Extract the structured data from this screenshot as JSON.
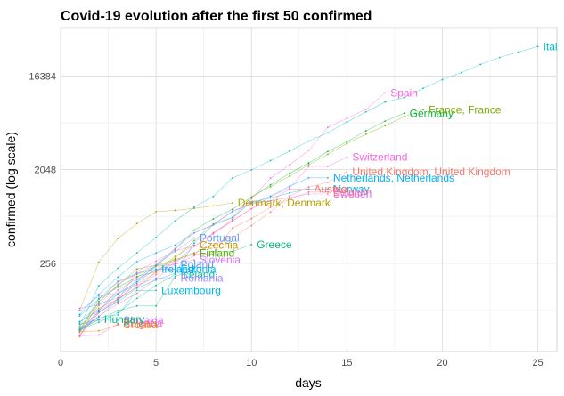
{
  "chart_data": {
    "type": "line",
    "title": "Covid-19 evolution after the first 50 confirmed",
    "xlabel": "days",
    "ylabel": "confirmed  (log scale)",
    "x_scale": "linear",
    "y_scale": "log2",
    "xlim": [
      0,
      26
    ],
    "ylim": [
      36,
      48000
    ],
    "x_ticks": [
      0,
      5,
      10,
      15,
      20,
      25
    ],
    "y_ticks": [
      256,
      2048,
      16384
    ],
    "x_tick_labels": [
      "0",
      "5",
      "10",
      "15",
      "20",
      "25"
    ],
    "y_tick_labels": [
      "256",
      "2048",
      "16384"
    ],
    "grid": true,
    "legend": "none (direct labels at line ends)",
    "series": [
      {
        "name": "Italy",
        "label": "Ital",
        "color": "#00BFC4",
        "values": [
          [
            1,
            62
          ],
          [
            2,
            155
          ],
          [
            3,
            229
          ],
          [
            4,
            322
          ],
          [
            5,
            453
          ],
          [
            6,
            655
          ],
          [
            7,
            888
          ],
          [
            8,
            1128
          ],
          [
            9,
            1694
          ],
          [
            10,
            2036
          ],
          [
            11,
            2502
          ],
          [
            12,
            3089
          ],
          [
            13,
            3858
          ],
          [
            14,
            4636
          ],
          [
            15,
            5883
          ],
          [
            16,
            7375
          ],
          [
            17,
            9172
          ],
          [
            18,
            10149
          ],
          [
            19,
            12462
          ],
          [
            20,
            15113
          ],
          [
            21,
            17660
          ],
          [
            22,
            21157
          ],
          [
            23,
            24747
          ],
          [
            24,
            27980
          ],
          [
            25,
            31506
          ]
        ]
      },
      {
        "name": "Spain",
        "label": "Spain",
        "color": "#F564E3",
        "values": [
          [
            1,
            52
          ],
          [
            2,
            85
          ],
          [
            3,
            114
          ],
          [
            4,
            151
          ],
          [
            5,
            198
          ],
          [
            6,
            257
          ],
          [
            7,
            374
          ],
          [
            8,
            500
          ],
          [
            9,
            673
          ],
          [
            10,
            1073
          ],
          [
            11,
            1695
          ],
          [
            12,
            2277
          ],
          [
            13,
            3146
          ],
          [
            14,
            5232
          ],
          [
            15,
            6391
          ],
          [
            16,
            7798
          ],
          [
            17,
            11277
          ]
        ]
      },
      {
        "name": "Germany",
        "label": "Germany",
        "color": "#00BA38",
        "values": [
          [
            1,
            57
          ],
          [
            2,
            117
          ],
          [
            3,
            150
          ],
          [
            4,
            188
          ],
          [
            5,
            240
          ],
          [
            6,
            349
          ],
          [
            7,
            534
          ],
          [
            8,
            684
          ],
          [
            9,
            847
          ],
          [
            10,
            1112
          ],
          [
            11,
            1460
          ],
          [
            12,
            1884
          ],
          [
            13,
            2369
          ],
          [
            14,
            3062
          ],
          [
            15,
            3795
          ],
          [
            16,
            4838
          ],
          [
            17,
            6012
          ],
          [
            18,
            7156
          ]
        ]
      },
      {
        "name": "France",
        "label": "France, France",
        "color": "#7CAE00",
        "values": [
          [
            1,
            57
          ],
          [
            2,
            100
          ],
          [
            3,
            130
          ],
          [
            4,
            191
          ],
          [
            5,
            212
          ],
          [
            6,
            285
          ],
          [
            7,
            423
          ],
          [
            8,
            613
          ],
          [
            9,
            706
          ],
          [
            10,
            1116
          ],
          [
            11,
            1402
          ],
          [
            12,
            1774
          ],
          [
            13,
            2281
          ],
          [
            14,
            2876
          ],
          [
            15,
            3661
          ],
          [
            16,
            4499
          ],
          [
            17,
            5423
          ],
          [
            18,
            6633
          ],
          [
            19,
            7730
          ]
        ]
      },
      {
        "name": "Switzerland",
        "label": "Switzerland",
        "color": "#F564E3",
        "values": [
          [
            1,
            56
          ],
          [
            2,
            90
          ],
          [
            3,
            114
          ],
          [
            4,
            214
          ],
          [
            5,
            268
          ],
          [
            6,
            337
          ],
          [
            7,
            374
          ],
          [
            8,
            491
          ],
          [
            9,
            652
          ],
          [
            10,
            858
          ],
          [
            11,
            1125
          ],
          [
            12,
            1359
          ],
          [
            13,
            2200
          ],
          [
            14,
            2200
          ],
          [
            15,
            2700
          ]
        ]
      },
      {
        "name": "United Kingdom",
        "label": "United Kingdom, United Kingdom",
        "color": "#F8766D",
        "values": [
          [
            1,
            51
          ],
          [
            2,
            85
          ],
          [
            3,
            115
          ],
          [
            4,
            163
          ],
          [
            5,
            206
          ],
          [
            6,
            273
          ],
          [
            7,
            321
          ],
          [
            8,
            382
          ],
          [
            9,
            456
          ],
          [
            10,
            590
          ],
          [
            11,
            798
          ],
          [
            12,
            1140
          ],
          [
            13,
            1391
          ],
          [
            14,
            1543
          ],
          [
            15,
            1950
          ]
        ]
      },
      {
        "name": "Netherlands",
        "label": "Netherlands, Netherlands",
        "color": "#00B0F6",
        "values": [
          [
            1,
            82
          ],
          [
            2,
            128
          ],
          [
            3,
            188
          ],
          [
            4,
            265
          ],
          [
            5,
            321
          ],
          [
            6,
            382
          ],
          [
            7,
            503
          ],
          [
            8,
            603
          ],
          [
            9,
            804
          ],
          [
            10,
            959
          ],
          [
            11,
            1135
          ],
          [
            12,
            1413
          ],
          [
            13,
            1705
          ],
          [
            14,
            1705
          ]
        ]
      },
      {
        "name": "Norway",
        "label": "Norway",
        "color": "#00B0F6",
        "values": [
          [
            1,
            56
          ],
          [
            2,
            87
          ],
          [
            3,
            108
          ],
          [
            4,
            147
          ],
          [
            5,
            176
          ],
          [
            6,
            205
          ],
          [
            7,
            400
          ],
          [
            8,
            598
          ],
          [
            9,
            702
          ],
          [
            10,
            996
          ],
          [
            11,
            1090
          ],
          [
            12,
            1221
          ],
          [
            13,
            1333
          ],
          [
            14,
            1333
          ]
        ]
      },
      {
        "name": "Austria",
        "label": "Austria",
        "color": "#F8766D",
        "values": [
          [
            1,
            55
          ],
          [
            2,
            79
          ],
          [
            3,
            104
          ],
          [
            4,
            131
          ],
          [
            5,
            182
          ],
          [
            6,
            246
          ],
          [
            7,
            302
          ],
          [
            8,
            504
          ],
          [
            9,
            655
          ],
          [
            10,
            860
          ],
          [
            11,
            1018
          ],
          [
            12,
            1332
          ],
          [
            13,
            1332
          ]
        ]
      },
      {
        "name": "Belgium",
        "label": "Belgium",
        "color": "#F8766D",
        "values": [
          [
            1,
            50
          ],
          [
            2,
            109
          ],
          [
            3,
            169
          ],
          [
            4,
            200
          ],
          [
            5,
            239
          ],
          [
            6,
            267
          ],
          [
            7,
            314
          ],
          [
            8,
            314
          ],
          [
            9,
            559
          ],
          [
            10,
            689
          ],
          [
            11,
            886
          ],
          [
            12,
            1058
          ],
          [
            13,
            1243
          ],
          [
            14,
            1243
          ]
        ]
      },
      {
        "name": "Sweden",
        "label": "Sweden",
        "color": "#E76BF3",
        "values": [
          [
            1,
            94
          ],
          [
            2,
            101
          ],
          [
            3,
            161
          ],
          [
            4,
            203
          ],
          [
            5,
            248
          ],
          [
            6,
            355
          ],
          [
            7,
            500
          ],
          [
            8,
            599
          ],
          [
            9,
            814
          ],
          [
            10,
            961
          ],
          [
            11,
            1022
          ],
          [
            12,
            1103
          ],
          [
            13,
            1190
          ],
          [
            14,
            1190
          ]
        ]
      },
      {
        "name": "Denmark",
        "label": "Denmark, Denmark",
        "color": "#B79F00",
        "values": [
          [
            1,
            90
          ],
          [
            2,
            262
          ],
          [
            3,
            444
          ],
          [
            4,
            617
          ],
          [
            5,
            804
          ],
          [
            6,
            827
          ],
          [
            7,
            864
          ],
          [
            8,
            914
          ],
          [
            9,
            977
          ]
        ]
      },
      {
        "name": "Greece",
        "label": "Greece",
        "color": "#00BF7D",
        "values": [
          [
            1,
            66
          ],
          [
            2,
            73
          ],
          [
            3,
            89
          ],
          [
            4,
            99
          ],
          [
            5,
            99
          ],
          [
            6,
            190
          ],
          [
            7,
            228
          ],
          [
            8,
            331
          ],
          [
            9,
            331
          ],
          [
            10,
            387
          ]
        ]
      },
      {
        "name": "Portugal",
        "label": "Portugal",
        "color": "#619CFF",
        "values": [
          [
            1,
            59
          ],
          [
            2,
            78
          ],
          [
            3,
            112
          ],
          [
            4,
            169
          ],
          [
            5,
            245
          ],
          [
            6,
            331
          ],
          [
            7,
            448
          ]
        ]
      },
      {
        "name": "Czechia",
        "label": "Czechia",
        "color": "#C49A00",
        "values": [
          [
            1,
            63
          ],
          [
            2,
            94
          ],
          [
            3,
            116
          ],
          [
            4,
            150
          ],
          [
            5,
            214
          ],
          [
            6,
            298
          ],
          [
            7,
            383
          ]
        ]
      },
      {
        "name": "Finland",
        "label": "Finland",
        "color": "#53B400",
        "values": [
          [
            1,
            59
          ],
          [
            2,
            109
          ],
          [
            3,
            155
          ],
          [
            4,
            225
          ],
          [
            5,
            244
          ],
          [
            6,
            277
          ],
          [
            7,
            321
          ]
        ]
      },
      {
        "name": "Slovenia",
        "label": "Slovenia",
        "color": "#DB72FB",
        "values": [
          [
            1,
            57
          ],
          [
            2,
            89
          ],
          [
            3,
            141
          ],
          [
            4,
            181
          ],
          [
            5,
            219
          ],
          [
            6,
            253
          ],
          [
            7,
            275
          ]
        ]
      },
      {
        "name": "Poland",
        "label": "Poland",
        "color": "#619CFF",
        "values": [
          [
            1,
            68
          ],
          [
            2,
            103
          ],
          [
            3,
            119
          ],
          [
            4,
            177
          ],
          [
            5,
            238
          ],
          [
            6,
            251
          ]
        ]
      },
      {
        "name": "Iceland",
        "label": "Iceland",
        "color": "#00C19A",
        "values": [
          [
            1,
            58
          ],
          [
            2,
            69
          ],
          [
            3,
            85
          ],
          [
            4,
            117
          ],
          [
            5,
            156
          ],
          [
            6,
            199
          ]
        ]
      },
      {
        "name": "Ireland",
        "label": "Ireland",
        "color": "#00A9FF",
        "values": [
          [
            1,
            70
          ],
          [
            2,
            90
          ],
          [
            3,
            129
          ],
          [
            4,
            169
          ],
          [
            5,
            223
          ]
        ]
      },
      {
        "name": "Estonia",
        "label": "Estonia",
        "color": "#00B6EB",
        "values": [
          [
            1,
            79
          ],
          [
            2,
            115
          ],
          [
            3,
            171
          ],
          [
            4,
            205
          ],
          [
            5,
            225
          ],
          [
            6,
            225
          ]
        ]
      },
      {
        "name": "Romania",
        "label": "Romania",
        "color": "#A58AFF",
        "values": [
          [
            1,
            89
          ],
          [
            2,
            123
          ],
          [
            3,
            131
          ],
          [
            4,
            158
          ],
          [
            5,
            184
          ],
          [
            6,
            184
          ]
        ]
      },
      {
        "name": "Luxembourg",
        "label": "Luxembourg",
        "color": "#00B8E7",
        "values": [
          [
            1,
            59
          ],
          [
            2,
            77
          ],
          [
            3,
            81
          ],
          [
            4,
            140
          ],
          [
            5,
            140
          ]
        ]
      },
      {
        "name": "Slovakia",
        "label": "Slovakia",
        "color": "#C77CFF",
        "values": [
          [
            1,
            61
          ],
          [
            2,
            72
          ],
          [
            3,
            72
          ]
        ]
      },
      {
        "name": "Bulgaria",
        "label": "Bulgaria",
        "color": "#FF61C3",
        "values": [
          [
            1,
            51
          ],
          [
            2,
            52
          ],
          [
            3,
            67
          ],
          [
            3,
            67
          ]
        ]
      },
      {
        "name": "Croatia",
        "label": "Croatia",
        "color": "#E08B00",
        "values": [
          [
            1,
            56
          ],
          [
            2,
            57
          ],
          [
            3,
            65
          ]
        ]
      },
      {
        "name": "Hungary",
        "label": "Hungary",
        "color": "#00BF7D",
        "values": [
          [
            1,
            58
          ],
          [
            2,
            73
          ]
        ]
      }
    ]
  }
}
